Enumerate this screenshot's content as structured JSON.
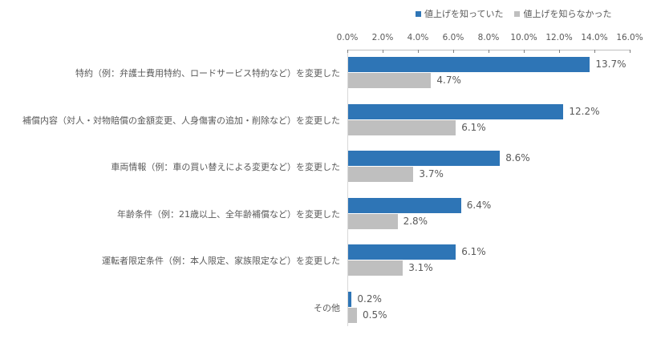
{
  "chart_data": {
    "type": "bar",
    "orientation": "horizontal",
    "title": "",
    "xlabel": "",
    "ylabel": "",
    "xlim": [
      0,
      16
    ],
    "x_ticks": [
      "0.0%",
      "2.0%",
      "4.0%",
      "6.0%",
      "8.0%",
      "10.0%",
      "12.0%",
      "14.0%",
      "16.0%"
    ],
    "axis_position": "top",
    "grid": false,
    "legend_position": "top",
    "categories": [
      "特約（例：弁護士費用特約、ロードサービス特約など）を変更した",
      "補償内容（対人・対物賠償の金額変更、人身傷害の追加・削除など）を変更した",
      "車両情報（例：車の買い替えによる変更など）を変更した",
      "年齢条件（例：21歳以上、全年齢補償など）を変更した",
      "運転者限定条件（例：本人限定、家族限定など）を変更した",
      "その他"
    ],
    "series": [
      {
        "name": "値上げを知っていた",
        "color": "#2e75b6",
        "values": [
          13.7,
          12.2,
          8.6,
          6.4,
          6.1,
          0.2
        ],
        "labels": [
          "13.7%",
          "12.2%",
          "8.6%",
          "6.4%",
          "6.1%",
          "0.2%"
        ]
      },
      {
        "name": "値上げを知らなかった",
        "color": "#bfbfbf",
        "values": [
          4.7,
          6.1,
          3.7,
          2.8,
          3.1,
          0.5
        ],
        "labels": [
          "4.7%",
          "6.1%",
          "3.7%",
          "2.8%",
          "3.1%",
          "0.5%"
        ]
      }
    ]
  }
}
